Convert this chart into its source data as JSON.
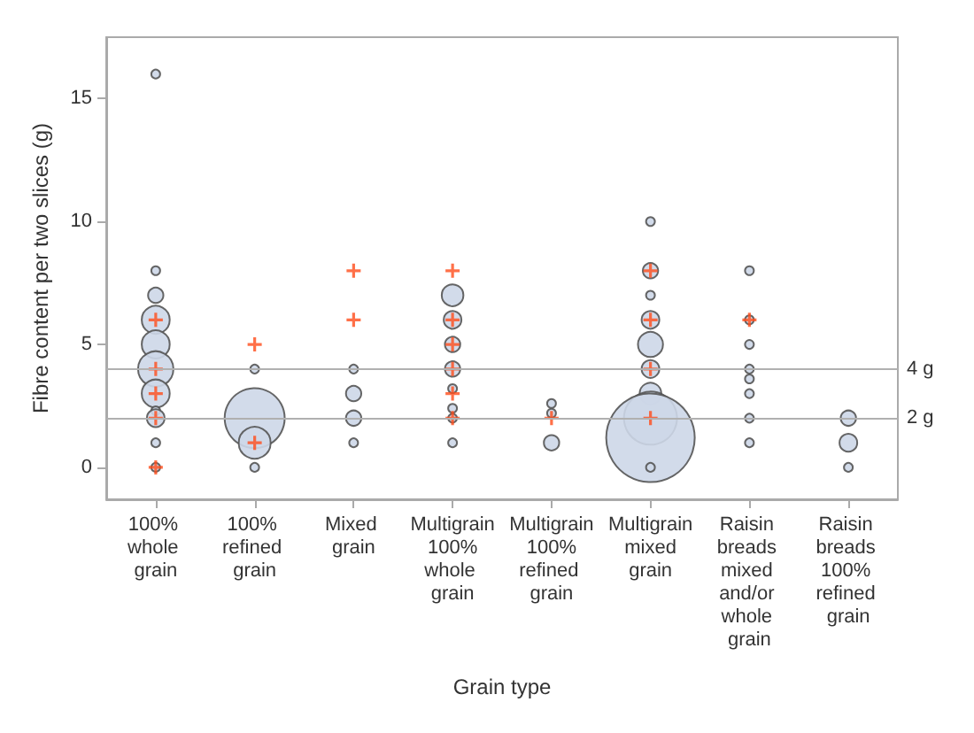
{
  "chart_data": {
    "type": "bubble",
    "xlabel": "Grain type",
    "ylabel": "Fibre content per two slices (g)",
    "categories": [
      "100% whole grain",
      "100% refined grain",
      "Mixed grain",
      "Multigrain 100% whole grain",
      "Multigrain 100% refined grain",
      "Multigrain mixed grain",
      "Raisin breads mixed and/or whole grain",
      "Raisin breads 100% refined grain"
    ],
    "ylim": [
      -1.3,
      17.5
    ],
    "yticks": [
      0,
      5,
      10,
      15
    ],
    "grid": false,
    "ref_lines": [
      {
        "axis": "y",
        "value": 4,
        "label": "4 g",
        "color": "#b0b0b0"
      },
      {
        "axis": "y",
        "value": 2,
        "label": "2 g",
        "color": "#b0b0b0"
      }
    ],
    "series": [
      {
        "color": "#cdd7e8",
        "marker": "circle",
        "x": [
          "100% whole grain",
          "100% whole grain",
          "100% whole grain",
          "100% whole grain",
          "100% whole grain",
          "100% whole grain",
          "100% whole grain",
          "100% whole grain",
          "100% whole grain",
          "100% whole grain",
          "100% whole grain",
          "100% refined grain",
          "100% refined grain",
          "100% refined grain",
          "100% refined grain",
          "Mixed grain",
          "Mixed grain",
          "Mixed grain",
          "Mixed grain",
          "Multigrain 100% whole grain",
          "Multigrain 100% whole grain",
          "Multigrain 100% whole grain",
          "Multigrain 100% whole grain",
          "Multigrain 100% whole grain",
          "Multigrain 100% whole grain",
          "Multigrain 100% whole grain",
          "Multigrain 100% whole grain",
          "Multigrain 100% refined grain",
          "Multigrain 100% refined grain",
          "Multigrain 100% refined grain",
          "Multigrain mixed grain",
          "Multigrain mixed grain",
          "Multigrain mixed grain",
          "Multigrain mixed grain",
          "Multigrain mixed grain",
          "Multigrain mixed grain",
          "Multigrain mixed grain",
          "Multigrain mixed grain",
          "Multigrain mixed grain",
          "Multigrain mixed grain",
          "Raisin breads mixed and/or whole grain",
          "Raisin breads mixed and/or whole grain",
          "Raisin breads mixed and/or whole grain",
          "Raisin breads mixed and/or whole grain",
          "Raisin breads mixed and/or whole grain",
          "Raisin breads mixed and/or whole grain",
          "Raisin breads mixed and/or whole grain",
          "Raisin breads mixed and/or whole grain",
          "Raisin breads 100% refined grain",
          "Raisin breads 100% refined grain",
          "Raisin breads 100% refined grain"
        ],
        "values": [
          16,
          8,
          7,
          6,
          5,
          4,
          3,
          2.3,
          2,
          1,
          0,
          4,
          2,
          1,
          0,
          4,
          3,
          2,
          1,
          7,
          6,
          5,
          4,
          3.2,
          2.4,
          2,
          1,
          2.6,
          2.2,
          1,
          10,
          8,
          7,
          6,
          5,
          4,
          3,
          2,
          1.2,
          0,
          8,
          6,
          5,
          4,
          3.6,
          3,
          2,
          1,
          2,
          1,
          0
        ],
        "sizes": [
          0.01,
          0.01,
          0.03,
          0.1,
          0.1,
          0.16,
          0.1,
          0.01,
          0.04,
          0.01,
          0.01,
          0.01,
          0.46,
          0.13,
          0.01,
          0.01,
          0.03,
          0.03,
          0.01,
          0.06,
          0.04,
          0.03,
          0.03,
          0.01,
          0.01,
          0.01,
          0.01,
          0.01,
          0.01,
          0.03,
          0.01,
          0.03,
          0.01,
          0.04,
          0.08,
          0.04,
          0.06,
          0.36,
          1,
          0.01,
          0.01,
          0.01,
          0.01,
          0.01,
          0.01,
          0.01,
          0.01,
          0.01,
          0.03,
          0.04,
          0.01
        ]
      },
      {
        "type": "scatter",
        "color": "#ff4c1a",
        "marker": "cross",
        "x": [
          "100% whole grain",
          "100% whole grain",
          "100% whole grain",
          "100% whole grain",
          "100% whole grain",
          "100% refined grain",
          "100% refined grain",
          "Mixed grain",
          "Mixed grain",
          "Multigrain 100% whole grain",
          "Multigrain 100% whole grain",
          "Multigrain 100% whole grain",
          "Multigrain 100% whole grain",
          "Multigrain 100% whole grain",
          "Multigrain 100% whole grain",
          "Multigrain 100% refined grain",
          "Multigrain mixed grain",
          "Multigrain mixed grain",
          "Multigrain mixed grain",
          "Multigrain mixed grain",
          "Raisin breads mixed and/or whole grain"
        ],
        "values": [
          6,
          4,
          3,
          2,
          0,
          5,
          1,
          8,
          6,
          8,
          6,
          5,
          4,
          3,
          2,
          2,
          8,
          6,
          4,
          2,
          6
        ]
      }
    ]
  }
}
